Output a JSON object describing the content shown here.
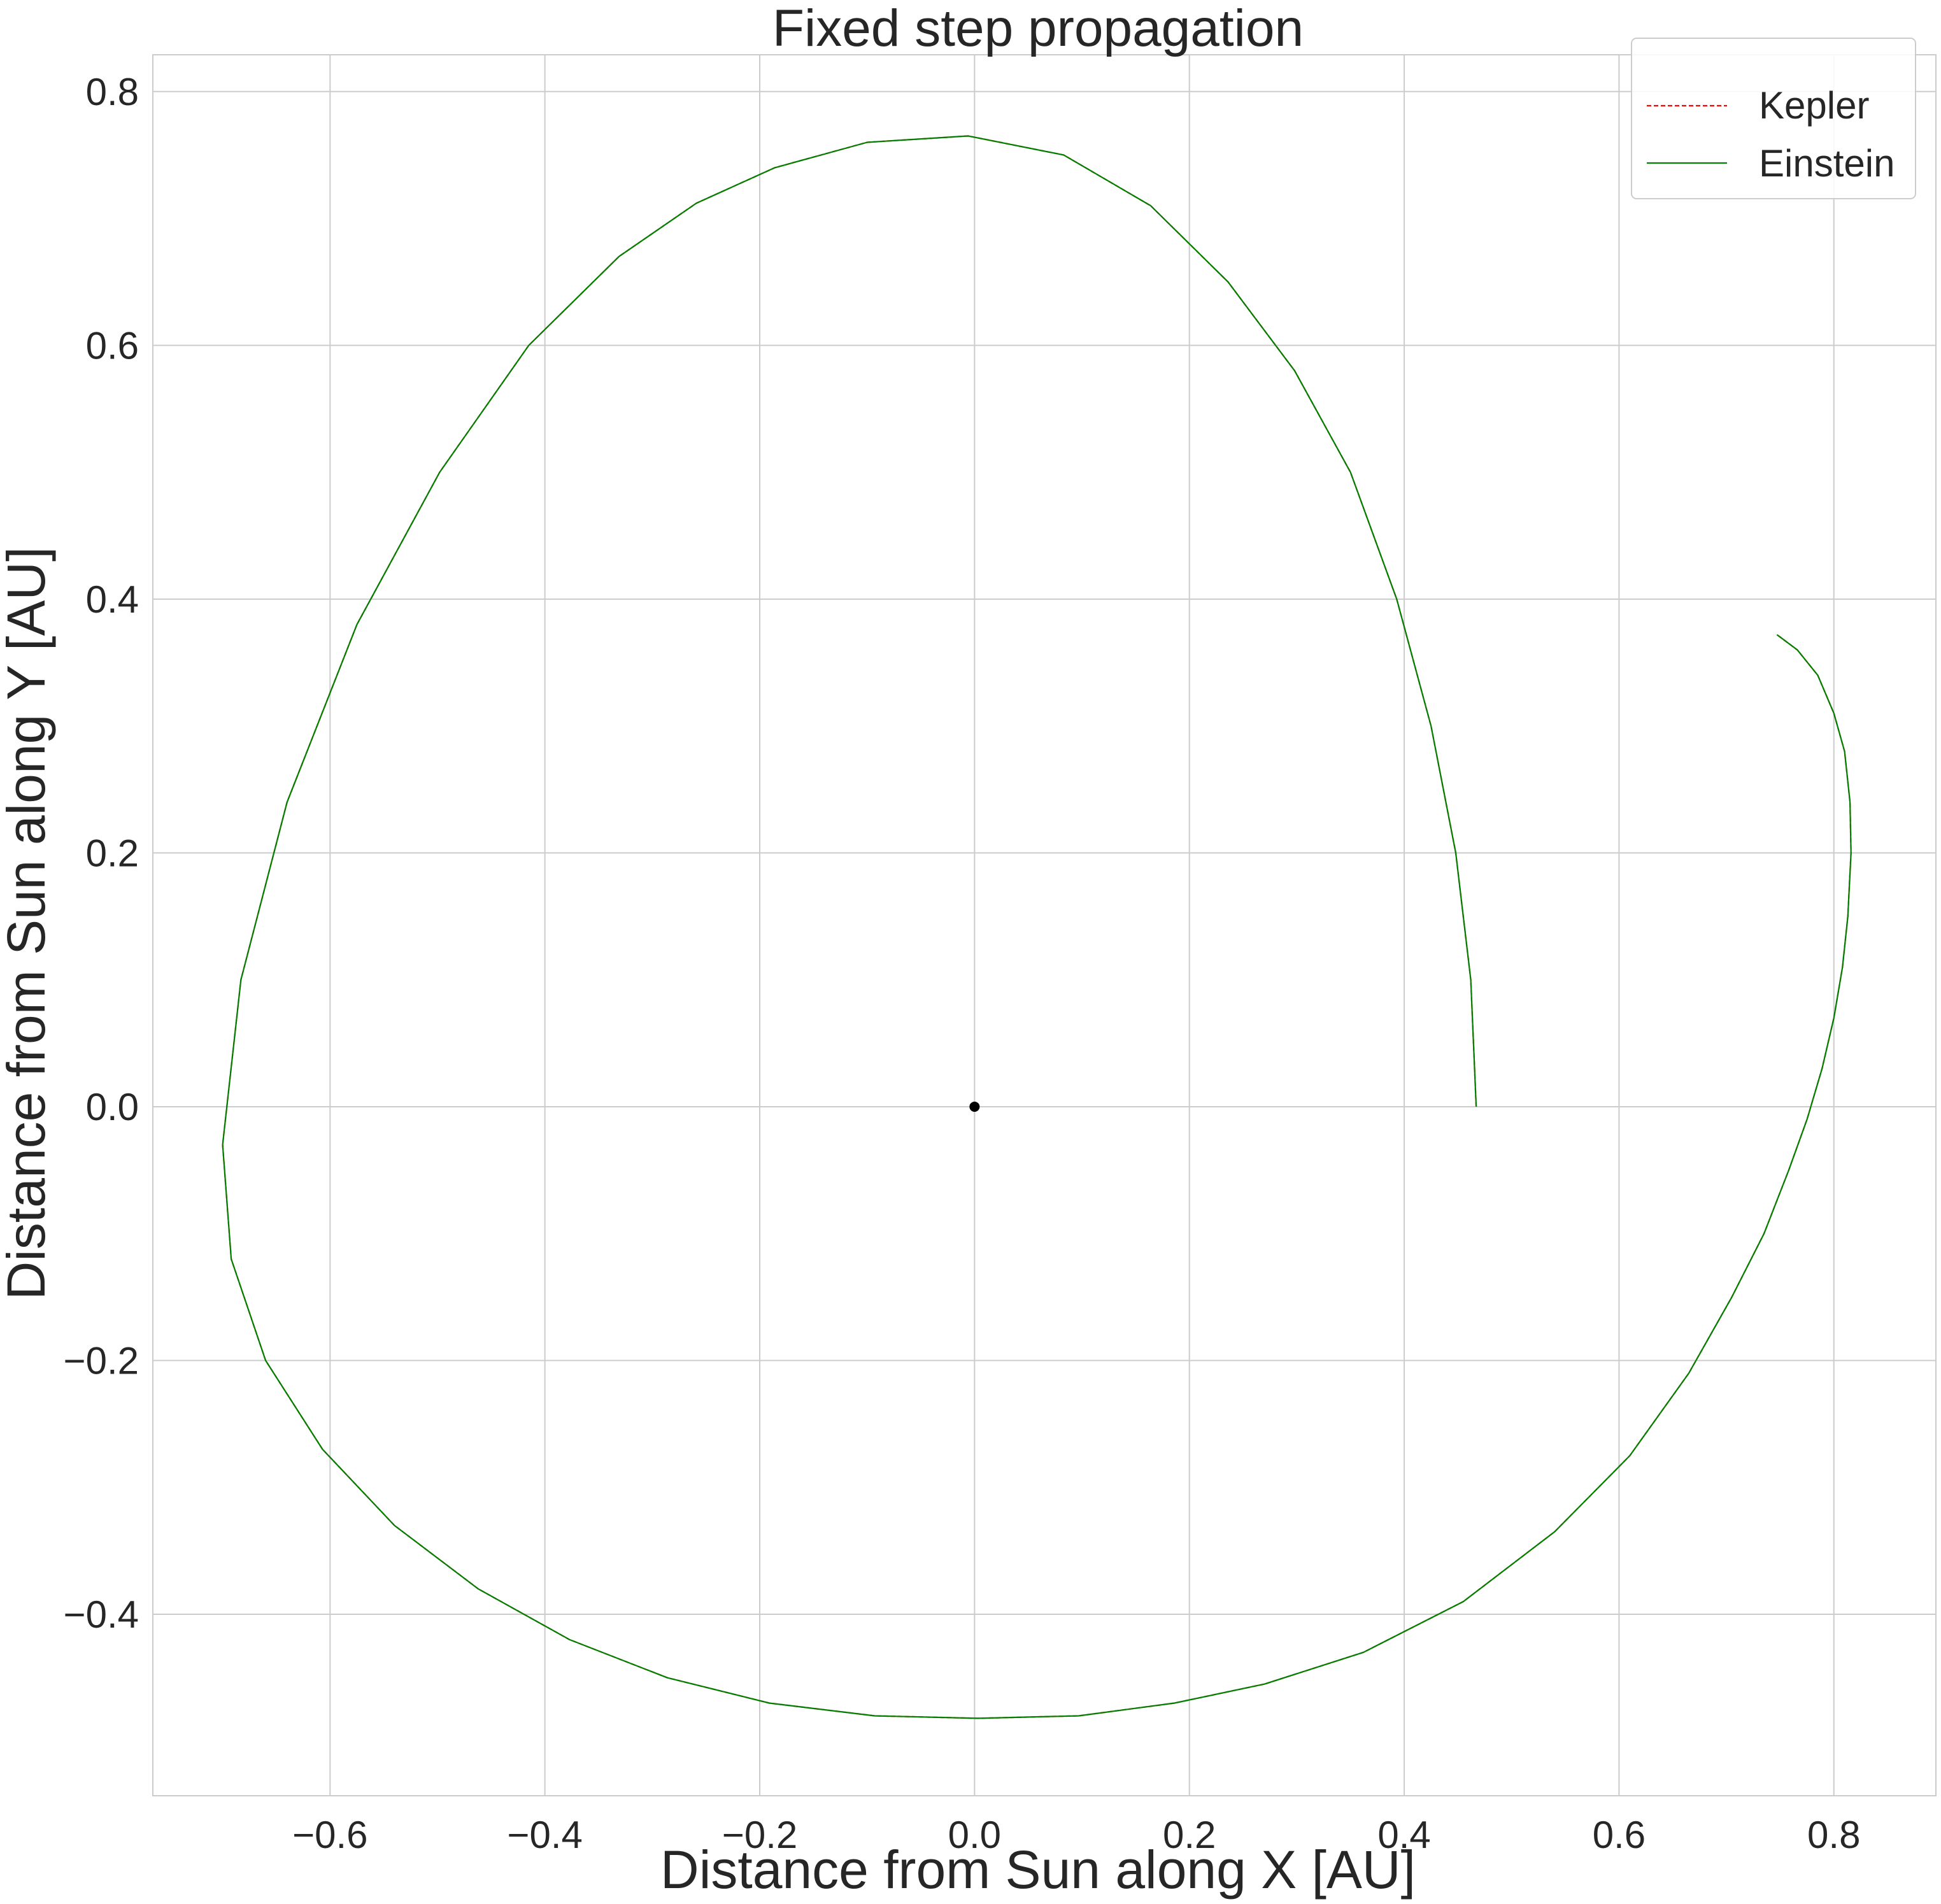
{
  "chart_data": {
    "type": "line",
    "title": "Fixed step propagation",
    "xlabel": "Distance from Sun along X [AU]",
    "ylabel": "Distance from Sun along Y [AU]",
    "xlim": [
      -0.765,
      0.895
    ],
    "ylim": [
      -0.543,
      0.829
    ],
    "x_ticks": [
      -0.6,
      -0.4,
      -0.2,
      0.0,
      0.2,
      0.4,
      0.6,
      0.8
    ],
    "x_tick_labels": [
      "−0.6",
      "−0.4",
      "−0.2",
      "0.0",
      "0.2",
      "0.4",
      "0.6",
      "0.8"
    ],
    "y_ticks": [
      -0.4,
      -0.2,
      0.0,
      0.2,
      0.4,
      0.6,
      0.8
    ],
    "y_tick_labels": [
      "−0.4",
      "−0.2",
      "0.0",
      "0.2",
      "0.4",
      "0.6",
      "0.8"
    ],
    "grid": true,
    "legend_position": "top-right",
    "series": [
      {
        "name": "Kepler",
        "color": "#ff0000",
        "style": "dashed",
        "x": [
          0.467,
          0.462,
          0.448,
          0.425,
          0.393,
          0.35,
          0.298,
          0.236,
          0.164,
          0.083,
          -0.006,
          -0.1,
          -0.186,
          -0.259,
          -0.331,
          -0.415,
          -0.498,
          -0.575,
          -0.64,
          -0.683,
          -0.7,
          -0.692,
          -0.66,
          -0.607,
          -0.54,
          -0.462,
          -0.377,
          -0.286,
          -0.191,
          -0.093,
          0.003,
          0.097,
          0.186,
          0.27,
          0.362,
          0.455,
          0.54,
          0.61,
          0.665,
          0.705,
          0.735,
          0.758,
          0.775,
          0.789,
          0.8,
          0.808,
          0.813,
          0.816,
          0.815,
          0.81,
          0.8,
          0.785,
          0.766,
          0.747
        ],
        "y": [
          0.0,
          0.1,
          0.2,
          0.3,
          0.4,
          0.5,
          0.58,
          0.65,
          0.71,
          0.75,
          0.765,
          0.76,
          0.74,
          0.712,
          0.67,
          0.6,
          0.5,
          0.38,
          0.24,
          0.1,
          -0.03,
          -0.12,
          -0.2,
          -0.27,
          -0.33,
          -0.38,
          -0.42,
          -0.45,
          -0.47,
          -0.48,
          -0.482,
          -0.48,
          -0.47,
          -0.455,
          -0.43,
          -0.39,
          -0.335,
          -0.275,
          -0.21,
          -0.15,
          -0.1,
          -0.05,
          -0.01,
          0.03,
          0.07,
          0.11,
          0.15,
          0.2,
          0.24,
          0.28,
          0.31,
          0.34,
          0.36,
          0.372
        ]
      },
      {
        "name": "Einstein",
        "color": "#008000",
        "style": "solid",
        "x": [
          0.467,
          0.462,
          0.448,
          0.425,
          0.393,
          0.35,
          0.298,
          0.236,
          0.164,
          0.083,
          -0.006,
          -0.1,
          -0.186,
          -0.259,
          -0.331,
          -0.415,
          -0.498,
          -0.575,
          -0.64,
          -0.683,
          -0.7,
          -0.692,
          -0.66,
          -0.607,
          -0.54,
          -0.462,
          -0.377,
          -0.286,
          -0.191,
          -0.093,
          0.003,
          0.097,
          0.186,
          0.27,
          0.362,
          0.455,
          0.54,
          0.61,
          0.665,
          0.705,
          0.735,
          0.758,
          0.775,
          0.789,
          0.8,
          0.808,
          0.813,
          0.816,
          0.815,
          0.81,
          0.8,
          0.785,
          0.766,
          0.747
        ],
        "y": [
          0.0,
          0.1,
          0.2,
          0.3,
          0.4,
          0.5,
          0.58,
          0.65,
          0.71,
          0.75,
          0.765,
          0.76,
          0.74,
          0.712,
          0.67,
          0.6,
          0.5,
          0.38,
          0.24,
          0.1,
          -0.03,
          -0.12,
          -0.2,
          -0.27,
          -0.33,
          -0.38,
          -0.42,
          -0.45,
          -0.47,
          -0.48,
          -0.482,
          -0.48,
          -0.47,
          -0.455,
          -0.43,
          -0.39,
          -0.335,
          -0.275,
          -0.21,
          -0.15,
          -0.1,
          -0.05,
          -0.01,
          0.03,
          0.07,
          0.11,
          0.15,
          0.2,
          0.24,
          0.28,
          0.31,
          0.34,
          0.36,
          0.372
        ]
      }
    ],
    "points": [
      {
        "x": 0.0,
        "y": 0.0,
        "color": "#000000"
      }
    ]
  }
}
